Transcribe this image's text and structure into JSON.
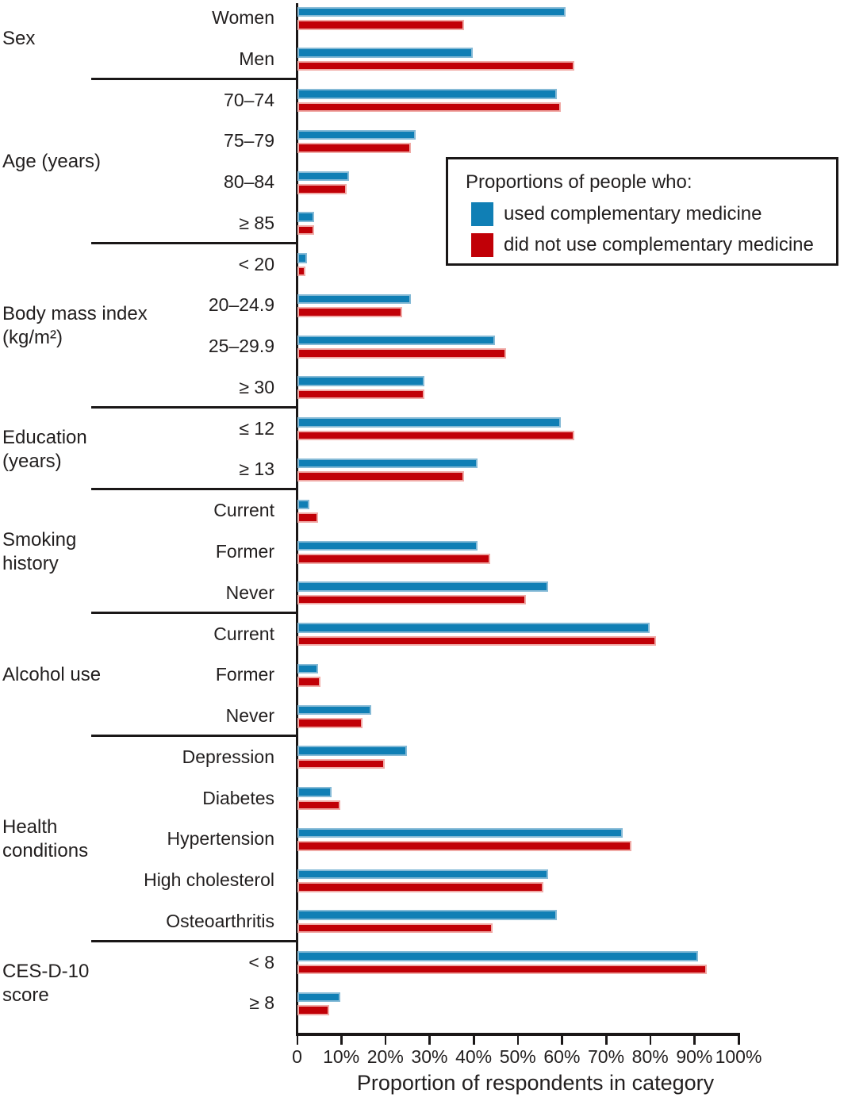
{
  "chart_data": {
    "type": "bar",
    "orientation": "horizontal",
    "xlabel": "Proportion of respondents in category",
    "x_axis": {
      "min": 0,
      "max": 100,
      "tick_step": 10,
      "tick_labels": [
        "0",
        "10%",
        "20%",
        "30%",
        "40%",
        "50%",
        "60%",
        "70%",
        "80%",
        "90%",
        "100%"
      ],
      "grid": false
    },
    "legend": {
      "title": "Proportions of people who:",
      "position": "upper-right-inset",
      "series": [
        {
          "name": "used complementary medicine",
          "color": "#107fb5",
          "border_color": "#85bad6"
        },
        {
          "name": "did not use complementary medicine",
          "color": "#c10007",
          "border_color": "#f0aaa6"
        }
      ]
    },
    "sections": [
      {
        "group_lines": [
          "Sex"
        ],
        "rows": [
          {
            "label": "Women",
            "used": 61,
            "not_used": 38
          },
          {
            "label": "Men",
            "used": 40,
            "not_used": 63
          }
        ]
      },
      {
        "group_lines": [
          "Age (years)"
        ],
        "rows": [
          {
            "label": "70–74",
            "used": 59,
            "not_used": 60
          },
          {
            "label": "75–79",
            "used": 27,
            "not_used": 26
          },
          {
            "label": "80–84",
            "used": 12,
            "not_used": 11.5
          },
          {
            "label": "≥ 85",
            "used": 4,
            "not_used": 4
          }
        ]
      },
      {
        "group_lines": [
          "Body mass index",
          "(kg/m²)"
        ],
        "rows": [
          {
            "label": "< 20",
            "used": 2.5,
            "not_used": 2
          },
          {
            "label": "20–24.9",
            "used": 26,
            "not_used": 24
          },
          {
            "label": "25–29.9",
            "used": 45,
            "not_used": 47.5
          },
          {
            "label": "≥ 30",
            "used": 29,
            "not_used": 29
          }
        ]
      },
      {
        "group_lines": [
          "Education",
          "(years)"
        ],
        "rows": [
          {
            "label": "≤ 12",
            "used": 60,
            "not_used": 63
          },
          {
            "label": "≥ 13",
            "used": 41,
            "not_used": 38
          }
        ]
      },
      {
        "group_lines": [
          "Smoking",
          "history"
        ],
        "rows": [
          {
            "label": "Current",
            "used": 3,
            "not_used": 5
          },
          {
            "label": "Former",
            "used": 41,
            "not_used": 44
          },
          {
            "label": "Never",
            "used": 57,
            "not_used": 52
          }
        ]
      },
      {
        "group_lines": [
          "Alcohol use"
        ],
        "rows": [
          {
            "label": "Current",
            "used": 80,
            "not_used": 81.5
          },
          {
            "label": "Former",
            "used": 5,
            "not_used": 5.5
          },
          {
            "label": "Never",
            "used": 17,
            "not_used": 15
          }
        ]
      },
      {
        "group_lines": [
          "Health",
          "conditions"
        ],
        "rows": [
          {
            "label": "Depression",
            "used": 25,
            "not_used": 20
          },
          {
            "label": "Diabetes",
            "used": 8,
            "not_used": 10
          },
          {
            "label": "Hypertension",
            "used": 74,
            "not_used": 76
          },
          {
            "label": "High cholesterol",
            "used": 57,
            "not_used": 56
          },
          {
            "label": "Osteoarthritis",
            "used": 59,
            "not_used": 44.5
          }
        ]
      },
      {
        "group_lines": [
          "CES-D-10",
          "score"
        ],
        "rows": [
          {
            "label": "< 8",
            "used": 91,
            "not_used": 93
          },
          {
            "label": "≥ 8",
            "used": 10,
            "not_used": 7.5
          }
        ]
      }
    ]
  },
  "colors": {
    "axis": "#1a1717",
    "text": "#221f1f",
    "used": "#107fb5",
    "not_used": "#c10007"
  }
}
